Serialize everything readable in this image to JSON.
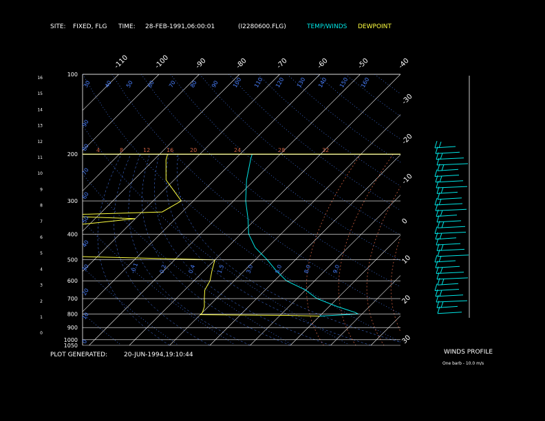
{
  "header": {
    "site_label": "SITE:",
    "site_value": "FIXED, FLG",
    "time_label": "TIME:",
    "time_value": "28-FEB-1991,06:00:01",
    "file": "(I2280600.FLG)",
    "legend_temp": "TEMP/WINDS",
    "legend_dew": "DEWPOINT"
  },
  "footer": {
    "generated_label": "PLOT GENERATED:",
    "generated_value": "20-JUN-1994,19:10:44",
    "winds_title": "WINDS PROFILE",
    "barb_note": "One barb - 10.0 m/s"
  },
  "colors": {
    "temperature": "#00e6e6",
    "dewpoint": "#ffff40",
    "dry_adiabat": "#4a80ff",
    "mixing_ratio": "#d06040",
    "grid": "#ffffff"
  },
  "chart_data": {
    "type": "line",
    "diagram": "skew-T log-P",
    "pressure_ticks": [
      100,
      200,
      300,
      400,
      500,
      600,
      700,
      800,
      900,
      1000,
      1050
    ],
    "height_ticks_km": [
      16,
      15,
      14,
      13,
      12,
      11,
      10,
      9,
      8,
      7,
      6,
      5,
      4,
      3,
      2,
      1,
      0
    ],
    "temperature_ticks_top": [
      -110,
      -100,
      -90,
      -80,
      -70,
      -60,
      -50,
      -40
    ],
    "temperature_ticks_right": [
      -30,
      -20,
      -10,
      0,
      10,
      20,
      30
    ],
    "dry_adiabat_labels": [
      "90",
      "80",
      "70",
      "60",
      "50",
      "40",
      "30",
      "20",
      "10",
      "0"
    ],
    "top_adiabat_labels": [
      "30",
      "40",
      "50",
      "60",
      "70",
      "80",
      "90",
      "100",
      "110",
      "120",
      "130",
      "140",
      "150",
      "160"
    ],
    "mixing_ratio_labels": [
      "4",
      "8",
      "12",
      "16",
      "20",
      "24",
      "28",
      "32"
    ],
    "lower_labels": [
      "-0.1",
      "0.2",
      "0.4",
      "1.5",
      "3.0",
      "5.0",
      "8.0",
      "9.0"
    ],
    "series": [
      {
        "name": "TEMP/WINDS",
        "points": [
          [
            200,
            -57
          ],
          [
            210,
            -56
          ],
          [
            250,
            -52
          ],
          [
            300,
            -47
          ],
          [
            350,
            -42
          ],
          [
            400,
            -38
          ],
          [
            450,
            -33
          ],
          [
            500,
            -27
          ],
          [
            550,
            -22
          ],
          [
            600,
            -17
          ],
          [
            650,
            -10
          ],
          [
            700,
            -5
          ],
          [
            750,
            2
          ],
          [
            790,
            8
          ],
          [
            800,
            9
          ],
          [
            805,
            6
          ],
          [
            815,
            0
          ]
        ]
      },
      {
        "name": "DEWPOINT",
        "points": [
          [
            200,
            -78
          ],
          [
            210,
            -77
          ],
          [
            250,
            -72
          ],
          [
            300,
            -63
          ],
          [
            330,
            -65
          ],
          [
            340,
            -93
          ],
          [
            350,
            -70
          ],
          [
            380,
            -90
          ],
          [
            400,
            -90
          ],
          [
            420,
            -84
          ],
          [
            450,
            -86
          ],
          [
            470,
            -87
          ],
          [
            480,
            -90
          ],
          [
            500,
            -40
          ],
          [
            550,
            -38
          ],
          [
            600,
            -36
          ],
          [
            650,
            -35
          ],
          [
            700,
            -33
          ],
          [
            750,
            -31
          ],
          [
            790,
            -30
          ],
          [
            805,
            -30
          ],
          [
            810,
            -8
          ],
          [
            815,
            0
          ]
        ]
      }
    ]
  }
}
